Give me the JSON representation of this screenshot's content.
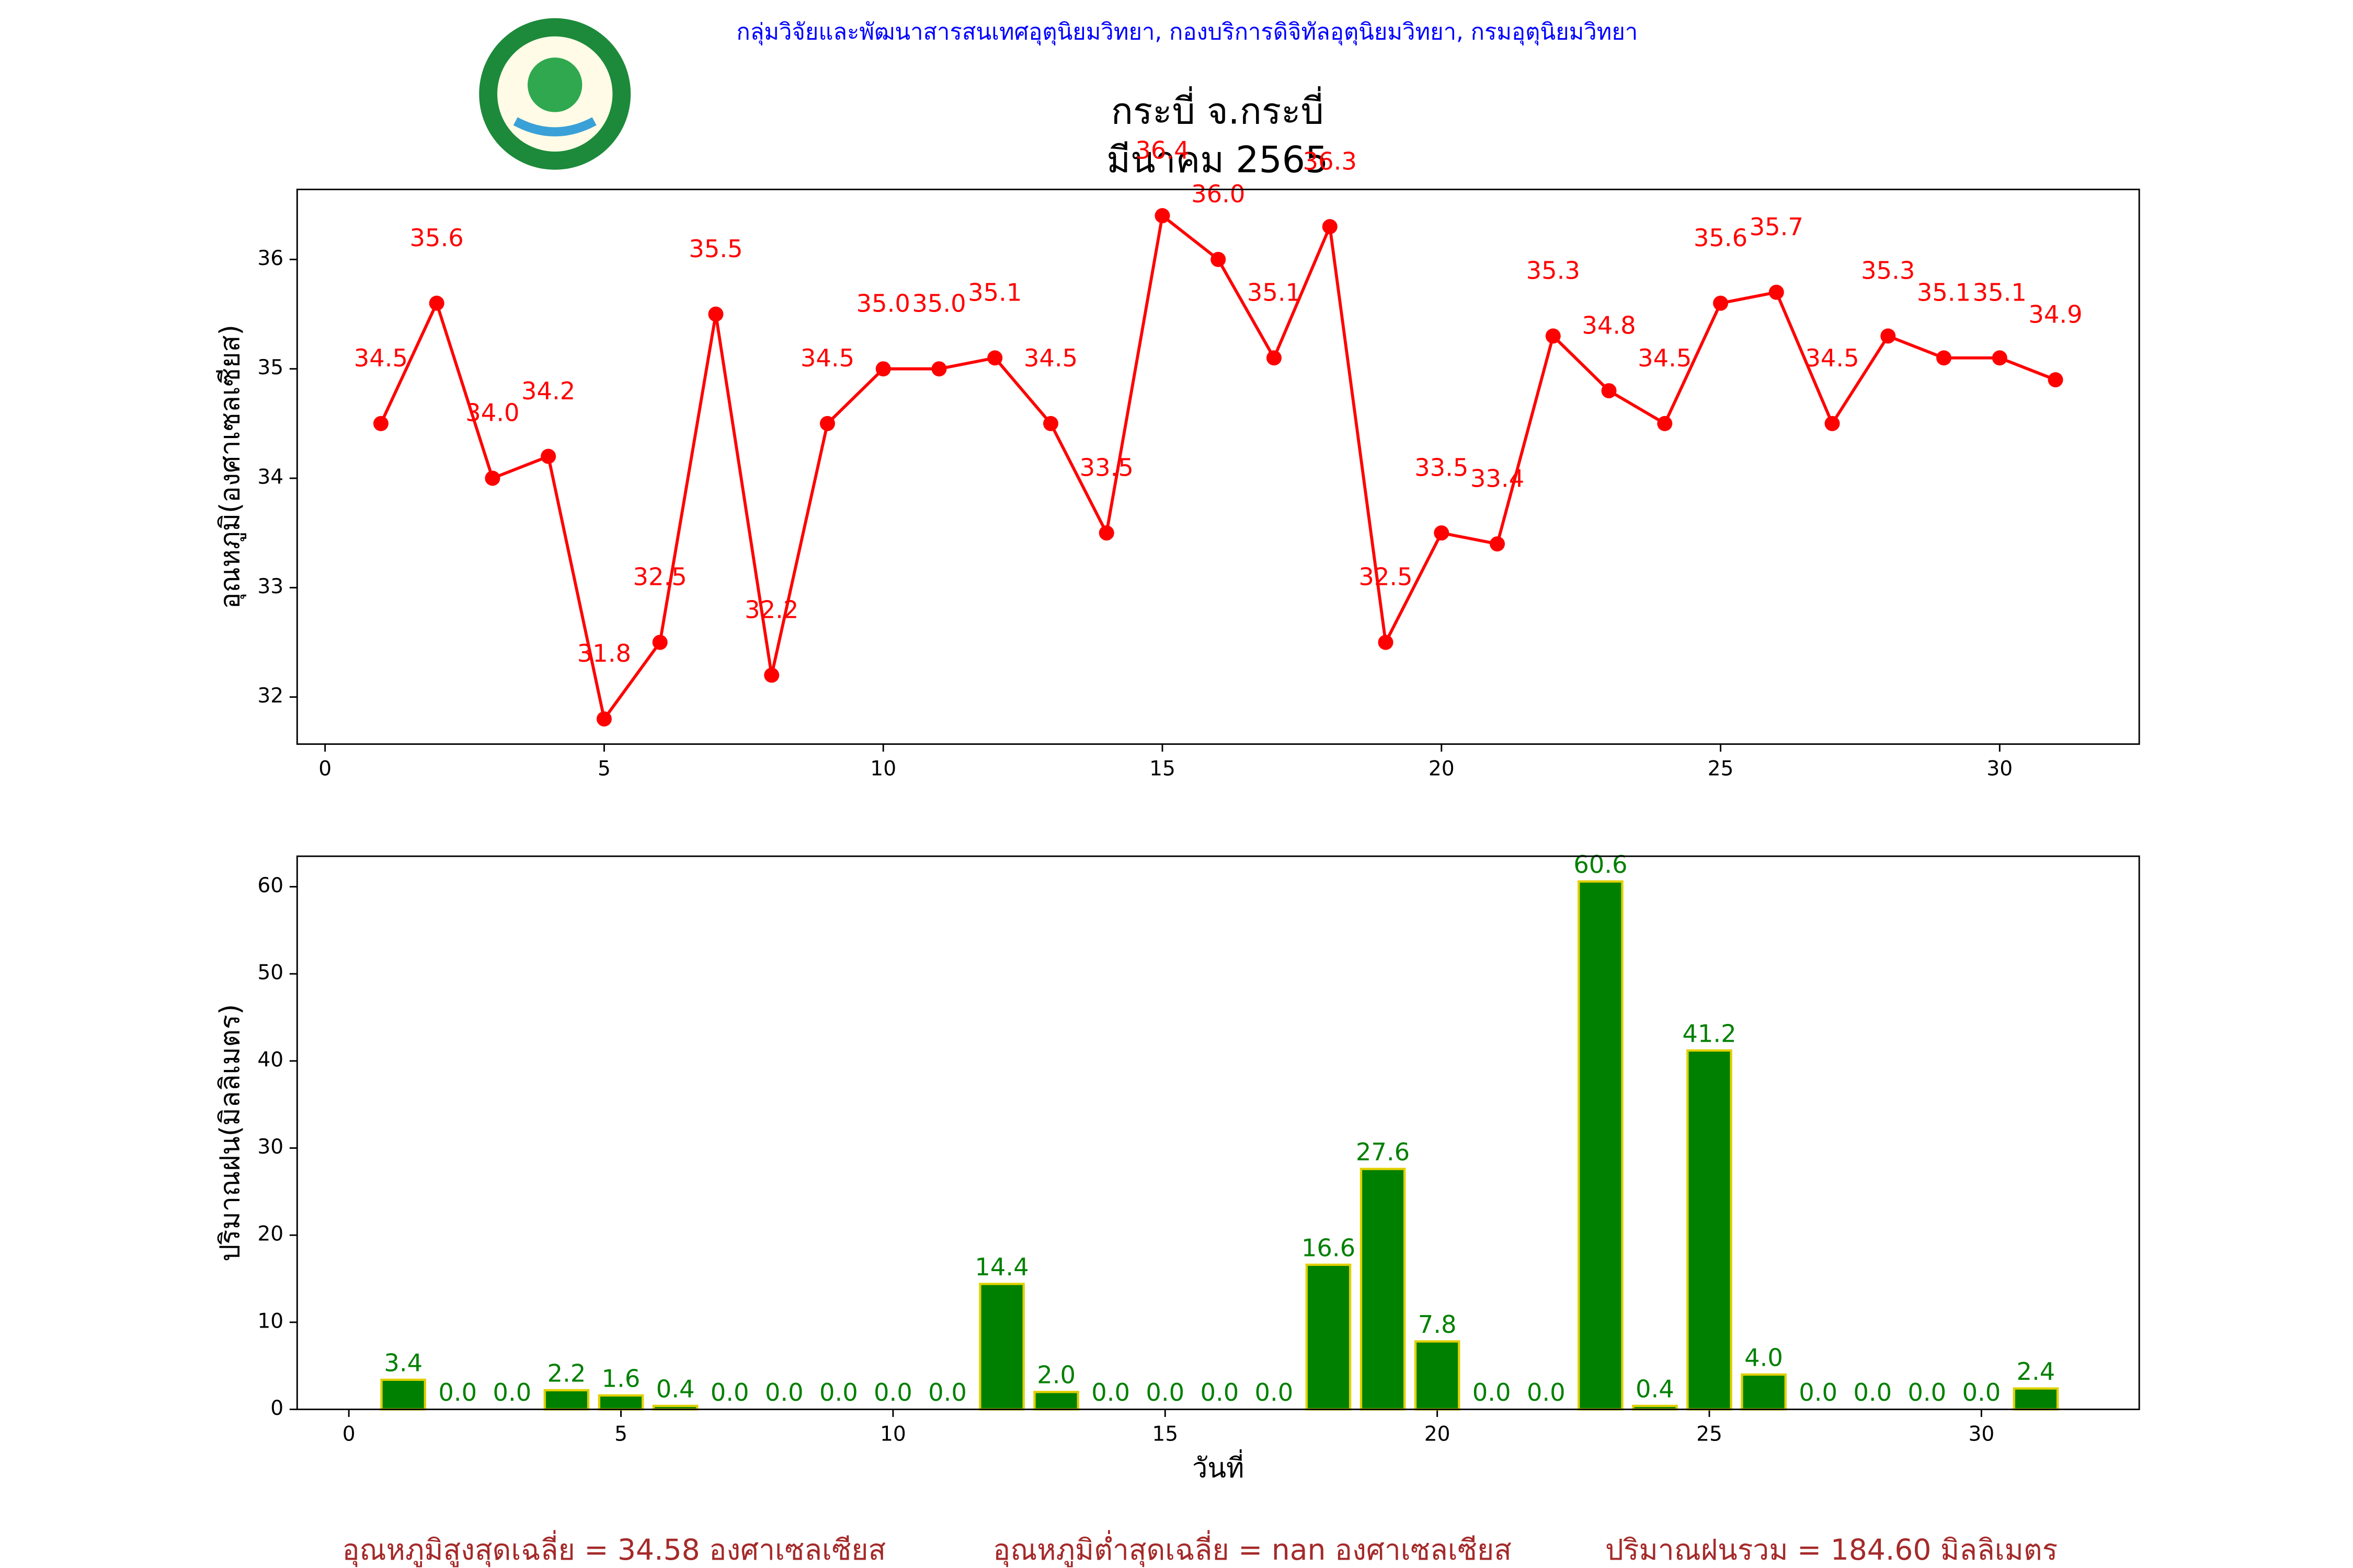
{
  "header": {
    "organization": "กลุ่มวิจัยและพัฒนาสารสนเทศอุตุนิยมวิทยา, กองบริการดิจิทัลอุตุนิยมวิทยา, กรมอุตุนิยมวิทยา",
    "title": [
      "กระบี่ จ.กระบี่",
      "มีนาคม 2565"
    ]
  },
  "chart_data": [
    {
      "type": "line",
      "ylabel": "อุณหภูมิ(องศาเซลเซียส)",
      "color": "#ff0000",
      "label_color": "#ff0000",
      "x": [
        1,
        2,
        3,
        4,
        5,
        6,
        7,
        8,
        9,
        10,
        11,
        12,
        13,
        14,
        15,
        16,
        17,
        18,
        19,
        20,
        21,
        22,
        23,
        24,
        25,
        26,
        27,
        28,
        29,
        30,
        31
      ],
      "values": [
        34.5,
        35.6,
        34.0,
        34.2,
        31.8,
        32.5,
        35.5,
        32.2,
        34.5,
        35.0,
        35.0,
        35.1,
        34.5,
        33.5,
        36.4,
        36.0,
        35.1,
        36.3,
        32.5,
        33.5,
        33.4,
        35.3,
        34.8,
        34.5,
        35.6,
        35.7,
        34.5,
        35.3,
        35.1,
        35.1,
        34.9
      ],
      "value_labels": [
        "34.5",
        "35.6",
        "34.0",
        "34.2",
        "31.8",
        "32.5",
        "35.5",
        "32.2",
        "34.5",
        "35.0",
        "35.0",
        "35.1",
        "34.5",
        "33.5",
        "36.4",
        "36.0",
        "35.1",
        "36.3",
        "32.5",
        "33.5",
        "33.4",
        "35.3",
        "34.8",
        "34.5",
        "35.6",
        "35.7",
        "34.5",
        "35.3",
        "35.1",
        "35.1",
        "34.9"
      ],
      "xlim": [
        -0.5,
        32.5
      ],
      "xticks": [
        0,
        5,
        10,
        15,
        20,
        25,
        30
      ],
      "ylim": [
        31.57,
        36.64
      ],
      "yticks": [
        32,
        33,
        34,
        35,
        36
      ],
      "grid": false
    },
    {
      "type": "bar",
      "xlabel": "วันที่",
      "ylabel": "ปริมาณฝน(มิลลิเมตร)",
      "color": "#008000",
      "edgecolor": "#e0d000",
      "label_color": "#008000",
      "x": [
        1,
        2,
        3,
        4,
        5,
        6,
        7,
        8,
        9,
        10,
        11,
        12,
        13,
        14,
        15,
        16,
        17,
        18,
        19,
        20,
        21,
        22,
        23,
        24,
        25,
        26,
        27,
        28,
        29,
        30,
        31
      ],
      "values": [
        3.4,
        0.0,
        0.0,
        2.2,
        1.6,
        0.4,
        0.0,
        0.0,
        0.0,
        0.0,
        0.0,
        14.4,
        2.0,
        0.0,
        0.0,
        0.0,
        0.0,
        16.6,
        27.6,
        7.8,
        0.0,
        0.0,
        60.6,
        0.4,
        41.2,
        4.0,
        0.0,
        0.0,
        0.0,
        0.0,
        2.4
      ],
      "value_labels": [
        "3.4",
        "0.0",
        "0.0",
        "2.2",
        "1.6",
        "0.4",
        "0.0",
        "0.0",
        "0.0",
        "0.0",
        "0.0",
        "14.4",
        "2.0",
        "0.0",
        "0.0",
        "0.0",
        "0.0",
        "16.6",
        "27.6",
        "7.8",
        "0.0",
        "0.0",
        "60.6",
        "0.4",
        "41.2",
        "4.0",
        "0.0",
        "0.0",
        "0.0",
        "0.0",
        "2.4"
      ],
      "xlim": [
        -0.95,
        32.9
      ],
      "xticks": [
        0,
        5,
        10,
        15,
        20,
        25,
        30
      ],
      "ylim": [
        0,
        63.5
      ],
      "yticks": [
        0,
        10,
        20,
        30,
        40,
        50,
        60
      ],
      "grid": false
    }
  ],
  "footer": {
    "stats": [
      "อุณหภูมิสูงสุดเฉลี่ย = 34.58 องศาเซลเซียส",
      "อุณหภูมิต่ำสุดเฉลี่ย = nan องศาเซลเซียส",
      "ปริมาณฝนรวม = 184.60 มิลลิเมตร"
    ]
  }
}
